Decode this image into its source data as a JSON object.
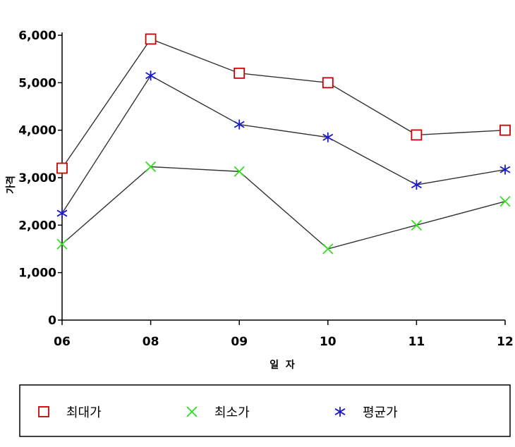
{
  "chart_data": {
    "type": "line",
    "xlabel": "일  자",
    "ylabel": "가격",
    "categories": [
      "06",
      "08",
      "09",
      "10",
      "11",
      "12"
    ],
    "yticks": [
      0,
      1000,
      2000,
      3000,
      4000,
      5000,
      6000
    ],
    "ytick_labels": [
      "0",
      "1,000",
      "2,000",
      "3,000",
      "4,000",
      "5,000",
      "6,000"
    ],
    "ylim": [
      0,
      6000
    ],
    "grid": false,
    "legend_position": "bottom",
    "series": [
      {
        "name": "최대가",
        "values": [
          3200,
          5920,
          5200,
          5000,
          3900,
          4000
        ],
        "marker": "square",
        "marker_color": "#cc0000",
        "line_color": "#333333"
      },
      {
        "name": "최소가",
        "values": [
          1600,
          3230,
          3130,
          1500,
          2000,
          2500
        ],
        "marker": "x",
        "marker_color": "#33dd22",
        "line_color": "#333333"
      },
      {
        "name": "평균가",
        "values": [
          2250,
          5150,
          4120,
          3850,
          2850,
          3170
        ],
        "marker": "asterisk",
        "marker_color": "#1a1acc",
        "line_color": "#333333"
      }
    ]
  }
}
